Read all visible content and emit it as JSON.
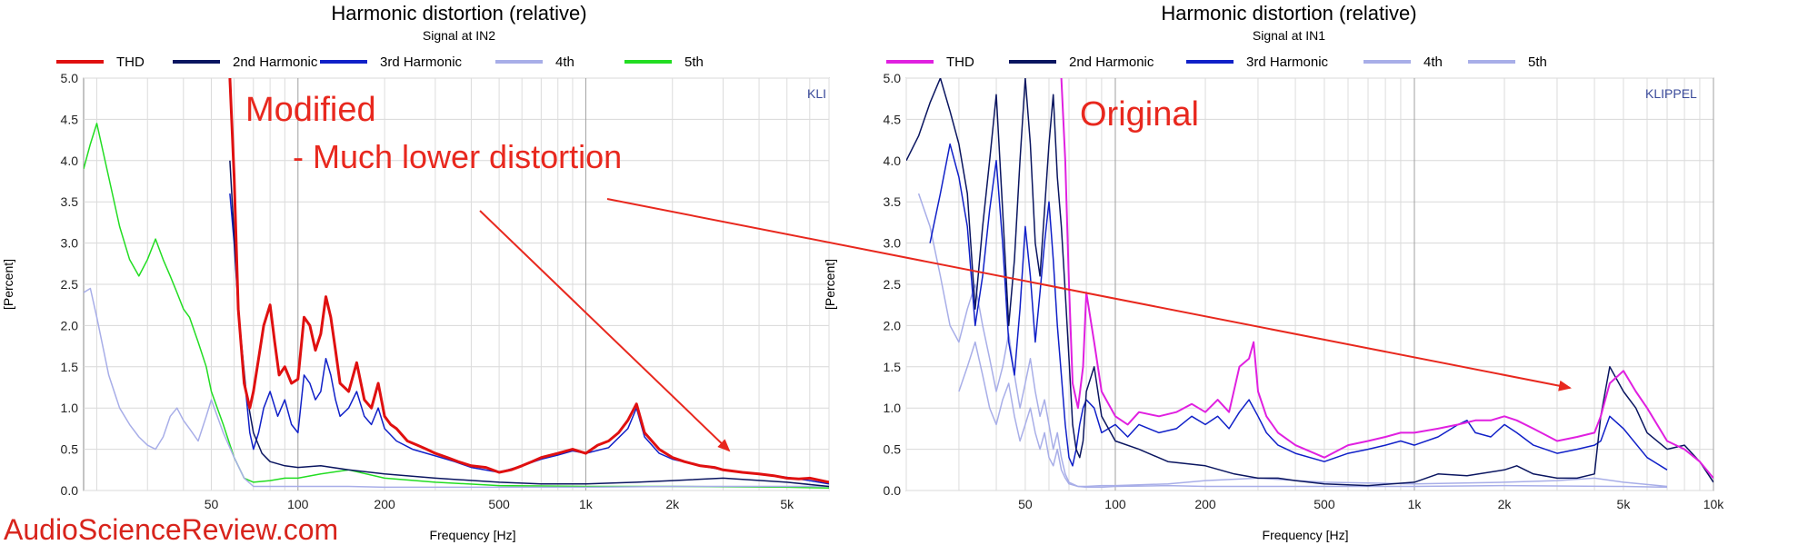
{
  "watermark": "AudioScienceReview.com",
  "colors": {
    "annotation": "#e8281e"
  },
  "chart_data": [
    {
      "type": "line",
      "title": "Harmonic distortion (relative)",
      "subtitle": "Signal at IN2",
      "xlabel": "Frequency [Hz]",
      "ylabel": "[Percent]",
      "xscale": "log",
      "xlim": [
        18,
        7000
      ],
      "ylim": [
        0,
        5
      ],
      "yticks": [
        "0.0",
        "0.5",
        "1.0",
        "1.5",
        "2.0",
        "2.5",
        "3.0",
        "3.5",
        "4.0",
        "4.5",
        "5.0"
      ],
      "xticks": [
        {
          "v": 50,
          "label": "50"
        },
        {
          "v": 100,
          "label": "100"
        },
        {
          "v": 200,
          "label": "200"
        },
        {
          "v": 500,
          "label": "500"
        },
        {
          "v": 1000,
          "label": "1k"
        },
        {
          "v": 2000,
          "label": "2k"
        },
        {
          "v": 5000,
          "label": "5k"
        }
      ],
      "grid": true,
      "watermark": "KLI",
      "annotations": [
        "Modified",
        "- Much lower distortion"
      ],
      "legend": "top",
      "series": [
        {
          "name": "THD",
          "color": "#e01010",
          "width": 3,
          "x": [
            58,
            60,
            62,
            65,
            68,
            70,
            73,
            76,
            80,
            83,
            86,
            90,
            95,
            100,
            105,
            110,
            115,
            120,
            125,
            130,
            135,
            140,
            150,
            160,
            170,
            180,
            190,
            200,
            210,
            220,
            240,
            260,
            280,
            300,
            330,
            360,
            400,
            450,
            500,
            550,
            600,
            650,
            700,
            800,
            900,
            1000,
            1100,
            1200,
            1300,
            1400,
            1500,
            1600,
            1800,
            2000,
            2200,
            2500,
            2800,
            3000,
            3500,
            4000,
            4500,
            5000,
            5500,
            6000,
            7000
          ],
          "y": [
            5.0,
            3.8,
            2.2,
            1.3,
            1.0,
            1.2,
            1.6,
            2.0,
            2.25,
            1.8,
            1.4,
            1.5,
            1.3,
            1.35,
            2.1,
            2.0,
            1.7,
            1.9,
            2.35,
            2.1,
            1.7,
            1.3,
            1.2,
            1.55,
            1.1,
            1.0,
            1.3,
            0.9,
            0.8,
            0.75,
            0.6,
            0.55,
            0.5,
            0.45,
            0.4,
            0.35,
            0.3,
            0.28,
            0.22,
            0.25,
            0.3,
            0.35,
            0.4,
            0.45,
            0.5,
            0.45,
            0.55,
            0.6,
            0.7,
            0.85,
            1.05,
            0.7,
            0.5,
            0.4,
            0.35,
            0.3,
            0.28,
            0.25,
            0.22,
            0.2,
            0.18,
            0.15,
            0.14,
            0.15,
            0.1
          ]
        },
        {
          "name": "2nd Harmonic",
          "color": "#0a1560",
          "width": 1.5,
          "x": [
            58,
            62,
            66,
            70,
            75,
            80,
            90,
            100,
            120,
            150,
            200,
            300,
            500,
            700,
            1000,
            1500,
            2000,
            3000,
            5000,
            7000
          ],
          "y": [
            4.0,
            2.2,
            1.2,
            0.7,
            0.45,
            0.35,
            0.3,
            0.28,
            0.3,
            0.25,
            0.2,
            0.15,
            0.1,
            0.08,
            0.08,
            0.1,
            0.12,
            0.15,
            0.1,
            0.05
          ]
        },
        {
          "name": "3rd Harmonic",
          "color": "#1020c8",
          "width": 1.5,
          "x": [
            58,
            60,
            62,
            65,
            68,
            70,
            73,
            76,
            80,
            85,
            90,
            95,
            100,
            105,
            110,
            115,
            120,
            125,
            130,
            135,
            140,
            150,
            160,
            170,
            180,
            190,
            200,
            220,
            250,
            300,
            350,
            400,
            500,
            600,
            700,
            800,
            900,
            1000,
            1200,
            1400,
            1500,
            1600,
            1800,
            2000,
            2500,
            3000,
            4000,
            5000,
            6000,
            7000
          ],
          "y": [
            3.6,
            3.0,
            2.2,
            1.4,
            0.7,
            0.5,
            0.7,
            1.0,
            1.2,
            0.9,
            1.1,
            0.8,
            0.7,
            1.4,
            1.3,
            1.1,
            1.2,
            1.6,
            1.4,
            1.1,
            0.9,
            1.0,
            1.2,
            0.9,
            0.8,
            1.0,
            0.75,
            0.6,
            0.5,
            0.42,
            0.35,
            0.28,
            0.22,
            0.3,
            0.38,
            0.43,
            0.48,
            0.45,
            0.52,
            0.75,
            1.0,
            0.65,
            0.45,
            0.38,
            0.3,
            0.25,
            0.2,
            0.16,
            0.12,
            0.08
          ]
        },
        {
          "name": "4th",
          "color": "#a8aee8",
          "width": 1.5,
          "x": [
            18,
            19,
            20,
            22,
            24,
            26,
            28,
            30,
            32,
            34,
            36,
            38,
            40,
            42,
            45,
            48,
            50,
            55,
            60,
            65,
            70,
            80,
            100,
            150,
            200,
            500,
            1000,
            2000,
            5000,
            7000
          ],
          "y": [
            2.4,
            2.45,
            2.1,
            1.4,
            1.0,
            0.8,
            0.65,
            0.55,
            0.5,
            0.65,
            0.9,
            1.0,
            0.85,
            0.75,
            0.6,
            0.9,
            1.1,
            0.7,
            0.4,
            0.15,
            0.05,
            0.05,
            0.05,
            0.05,
            0.04,
            0.04,
            0.04,
            0.05,
            0.05,
            0.05
          ]
        },
        {
          "name": "5th",
          "color": "#22dd22",
          "width": 1.5,
          "x": [
            18,
            19,
            20,
            22,
            24,
            26,
            28,
            30,
            32,
            34,
            36,
            38,
            40,
            42,
            45,
            48,
            50,
            55,
            60,
            65,
            70,
            80,
            90,
            100,
            120,
            150,
            200,
            300,
            500,
            1000,
            2000,
            5000,
            7000
          ],
          "y": [
            3.9,
            4.2,
            4.45,
            3.8,
            3.2,
            2.8,
            2.6,
            2.8,
            3.05,
            2.8,
            2.6,
            2.4,
            2.2,
            2.1,
            1.8,
            1.5,
            1.2,
            0.8,
            0.4,
            0.15,
            0.1,
            0.12,
            0.15,
            0.15,
            0.2,
            0.25,
            0.15,
            0.1,
            0.06,
            0.05,
            0.05,
            0.04,
            0.03
          ]
        }
      ]
    },
    {
      "type": "line",
      "title": "Harmonic distortion (relative)",
      "subtitle": "Signal at IN1",
      "xlabel": "Frequency [Hz]",
      "ylabel": "[Percent]",
      "xscale": "log",
      "xlim": [
        20,
        10000
      ],
      "ylim": [
        0,
        5
      ],
      "yticks": [
        "0.0",
        "0.5",
        "1.0",
        "1.5",
        "2.0",
        "2.5",
        "3.0",
        "3.5",
        "4.0",
        "4.5",
        "5.0"
      ],
      "xticks": [
        {
          "v": 50,
          "label": "50"
        },
        {
          "v": 100,
          "label": "100"
        },
        {
          "v": 200,
          "label": "200"
        },
        {
          "v": 500,
          "label": "500"
        },
        {
          "v": 1000,
          "label": "1k"
        },
        {
          "v": 2000,
          "label": "2k"
        },
        {
          "v": 5000,
          "label": "5k"
        },
        {
          "v": 10000,
          "label": "10k"
        }
      ],
      "grid": true,
      "watermark": "KLIPPEL",
      "annotations": [
        "Original"
      ],
      "legend": "top",
      "series": [
        {
          "name": "THD",
          "color": "#e020e0",
          "width": 2,
          "x": [
            66,
            68,
            70,
            72,
            75,
            78,
            80,
            85,
            90,
            100,
            110,
            120,
            140,
            160,
            180,
            200,
            220,
            240,
            260,
            280,
            290,
            300,
            320,
            350,
            400,
            500,
            600,
            700,
            800,
            900,
            1000,
            1200,
            1400,
            1600,
            1800,
            2000,
            2200,
            2500,
            3000,
            3500,
            4000,
            4200,
            4500,
            5000,
            5500,
            6000,
            7000,
            8000,
            9000,
            10000
          ],
          "y": [
            5.0,
            4.0,
            2.5,
            1.3,
            1.0,
            1.5,
            2.4,
            1.8,
            1.2,
            0.9,
            0.8,
            0.95,
            0.9,
            0.95,
            1.05,
            0.95,
            1.1,
            0.95,
            1.5,
            1.6,
            1.8,
            1.2,
            0.9,
            0.7,
            0.55,
            0.4,
            0.55,
            0.6,
            0.65,
            0.7,
            0.7,
            0.75,
            0.8,
            0.85,
            0.85,
            0.9,
            0.85,
            0.75,
            0.6,
            0.65,
            0.7,
            0.9,
            1.3,
            1.45,
            1.2,
            1.0,
            0.6,
            0.5,
            0.35,
            0.15
          ]
        },
        {
          "name": "2nd Harmonic",
          "color": "#0a1560",
          "width": 1.5,
          "x": [
            20,
            22,
            24,
            26,
            28,
            30,
            32,
            34,
            36,
            38,
            40,
            42,
            44,
            46,
            48,
            50,
            52,
            54,
            56,
            58,
            60,
            62,
            64,
            66,
            68,
            70,
            72,
            74,
            76,
            78,
            80,
            85,
            90,
            100,
            120,
            150,
            200,
            250,
            300,
            350,
            400,
            500,
            700,
            1000,
            1200,
            1500,
            2000,
            2200,
            2500,
            3000,
            3500,
            4000,
            4200,
            4500,
            5000,
            5500,
            6000,
            7000,
            8000,
            9000,
            10000
          ],
          "y": [
            4.0,
            4.3,
            4.7,
            5.0,
            4.6,
            4.2,
            3.6,
            2.2,
            3.2,
            4.0,
            4.8,
            3.4,
            2.0,
            2.8,
            4.0,
            5.0,
            4.2,
            3.0,
            2.6,
            3.4,
            4.2,
            4.8,
            3.8,
            3.2,
            2.4,
            1.6,
            0.8,
            0.5,
            0.4,
            0.6,
            1.2,
            1.5,
            0.9,
            0.6,
            0.5,
            0.35,
            0.3,
            0.2,
            0.15,
            0.15,
            0.12,
            0.08,
            0.06,
            0.1,
            0.2,
            0.18,
            0.25,
            0.3,
            0.2,
            0.15,
            0.15,
            0.2,
            0.9,
            1.5,
            1.2,
            1.0,
            0.7,
            0.5,
            0.55,
            0.35,
            0.1
          ]
        },
        {
          "name": "3rd Harmonic",
          "color": "#1020c8",
          "width": 1.5,
          "x": [
            24,
            26,
            28,
            30,
            32,
            34,
            36,
            38,
            40,
            42,
            44,
            46,
            48,
            50,
            52,
            54,
            56,
            58,
            60,
            62,
            64,
            66,
            68,
            70,
            72,
            74,
            76,
            78,
            80,
            85,
            90,
            100,
            110,
            120,
            140,
            160,
            180,
            200,
            220,
            240,
            260,
            280,
            300,
            320,
            350,
            400,
            500,
            600,
            700,
            800,
            900,
            1000,
            1200,
            1400,
            1500,
            1600,
            1800,
            2000,
            2200,
            2500,
            3000,
            3500,
            4000,
            4200,
            4500,
            5000,
            6000,
            7000
          ],
          "y": [
            3.0,
            3.6,
            4.2,
            3.8,
            3.2,
            2.0,
            2.6,
            3.4,
            4.0,
            3.0,
            1.8,
            1.4,
            2.2,
            3.2,
            2.6,
            1.8,
            2.4,
            3.0,
            3.5,
            2.8,
            2.0,
            1.4,
            0.8,
            0.4,
            0.3,
            0.5,
            0.8,
            1.0,
            1.1,
            1.0,
            0.7,
            0.8,
            0.65,
            0.8,
            0.7,
            0.75,
            0.9,
            0.8,
            0.9,
            0.75,
            0.95,
            1.1,
            0.9,
            0.7,
            0.55,
            0.45,
            0.35,
            0.45,
            0.5,
            0.55,
            0.6,
            0.55,
            0.65,
            0.8,
            0.85,
            0.7,
            0.65,
            0.8,
            0.7,
            0.55,
            0.45,
            0.5,
            0.55,
            0.6,
            0.9,
            0.75,
            0.4,
            0.25
          ]
        },
        {
          "name": "4th",
          "color": "#a8aee8",
          "width": 1.5,
          "x": [
            22,
            24,
            26,
            28,
            30,
            32,
            34,
            36,
            38,
            40,
            42,
            44,
            46,
            48,
            50,
            52,
            54,
            56,
            58,
            60,
            62,
            64,
            66,
            68,
            70,
            75,
            80,
            90,
            100,
            150,
            200,
            300,
            500,
            1000,
            2000,
            3000,
            4000,
            5000,
            7000
          ],
          "y": [
            3.6,
            3.2,
            2.6,
            2.0,
            1.8,
            2.2,
            2.5,
            2.0,
            1.6,
            1.2,
            1.5,
            1.9,
            1.4,
            1.0,
            1.3,
            1.6,
            1.2,
            0.9,
            1.1,
            0.8,
            0.5,
            0.7,
            0.4,
            0.2,
            0.1,
            0.05,
            0.05,
            0.06,
            0.06,
            0.08,
            0.12,
            0.15,
            0.1,
            0.08,
            0.1,
            0.12,
            0.15,
            0.1,
            0.05
          ]
        },
        {
          "name": "5th",
          "color": "#a8aee8",
          "width": 1.5,
          "x": [
            30,
            32,
            34,
            36,
            38,
            40,
            42,
            44,
            46,
            48,
            50,
            52,
            54,
            56,
            58,
            60,
            62,
            64,
            66,
            68,
            70,
            75,
            80,
            90,
            100,
            150,
            200,
            500,
            1000,
            2000,
            5000,
            7000
          ],
          "y": [
            1.2,
            1.5,
            1.8,
            1.4,
            1.0,
            0.8,
            1.1,
            1.3,
            0.9,
            0.6,
            0.8,
            1.0,
            0.7,
            0.5,
            0.7,
            0.4,
            0.3,
            0.5,
            0.25,
            0.15,
            0.08,
            0.05,
            0.04,
            0.04,
            0.05,
            0.06,
            0.05,
            0.05,
            0.05,
            0.06,
            0.05,
            0.04
          ]
        }
      ]
    }
  ]
}
